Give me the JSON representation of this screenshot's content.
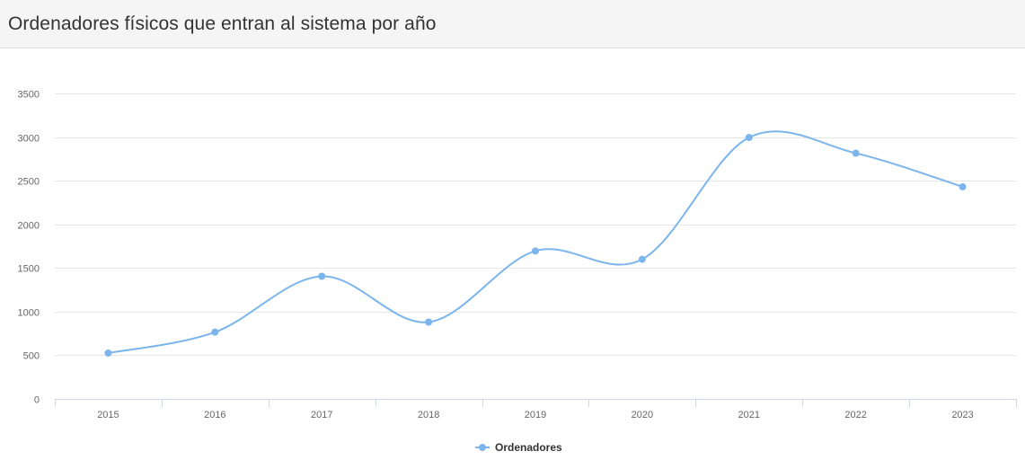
{
  "panel": {
    "title": "Ordenadores físicos que entran al sistema por año"
  },
  "colors": {
    "series": "#7cb5ec",
    "grid": "#e6e6e6",
    "axis": "#ccd6eb",
    "tick_label": "#666666",
    "legend_text": "#333333"
  },
  "chart_data": {
    "type": "line",
    "title": "",
    "xlabel": "",
    "ylabel": "",
    "categories": [
      "2015",
      "2016",
      "2017",
      "2018",
      "2019",
      "2020",
      "2021",
      "2022",
      "2023"
    ],
    "series": [
      {
        "name": "Ordenadores",
        "values": [
          525,
          765,
          1405,
          880,
          1695,
          1600,
          2995,
          2815,
          2430
        ]
      }
    ],
    "ylim": [
      0,
      3500
    ],
    "yticks": [
      0,
      500,
      1000,
      1500,
      2000,
      2500,
      3000,
      3500
    ],
    "grid": true,
    "smooth": true,
    "legend": "bottom-center"
  }
}
